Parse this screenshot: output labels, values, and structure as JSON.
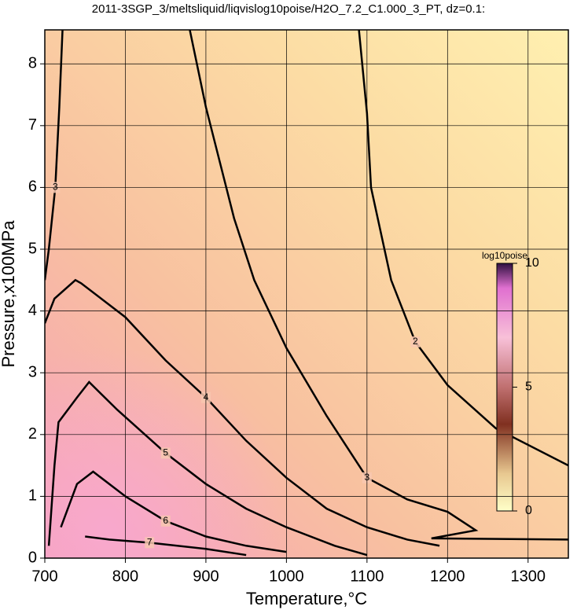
{
  "chart_data": {
    "type": "contour",
    "title": "2011-3SGP_3/meltsliquid/liqvislog10poise/H2O_7.2_C1.000_3_PT, dz=0.1:",
    "xlabel": "Temperature,°C",
    "ylabel": "Pressure,x100MPa",
    "xlim": [
      700,
      1350
    ],
    "ylim": [
      0,
      8.55
    ],
    "xticks": [
      700,
      800,
      900,
      1000,
      1100,
      1200,
      1300
    ],
    "yticks": [
      0,
      1,
      2,
      3,
      4,
      5,
      6,
      7,
      8
    ],
    "grid": true,
    "contours": [
      {
        "level": 2,
        "x": [
          1090,
          1100,
          1105,
          1130,
          1160,
          1200,
          1260,
          1350
        ],
        "y": [
          8.55,
          7.2,
          6.0,
          4.5,
          3.5,
          2.8,
          2.1,
          1.5
        ]
      },
      {
        "level": 3,
        "x": [
          880,
          900,
          935,
          960,
          1000,
          1050,
          1100,
          1150,
          1200,
          1235,
          1180,
          1350
        ],
        "y": [
          8.55,
          7.3,
          5.5,
          4.5,
          3.4,
          2.3,
          1.3,
          0.95,
          0.75,
          0.45,
          0.32,
          0.3
        ]
      },
      {
        "level": 3,
        "x": [
          722,
          718,
          713,
          705,
          700
        ],
        "y": [
          8.55,
          7.3,
          6.0,
          5.0,
          4.5
        ]
      },
      {
        "level": 4,
        "x": [
          700,
          712,
          738,
          745,
          800,
          850,
          900,
          950,
          1000,
          1050,
          1100,
          1150,
          1190
        ],
        "y": [
          3.8,
          4.2,
          4.5,
          4.45,
          3.9,
          3.2,
          2.6,
          1.9,
          1.3,
          0.8,
          0.5,
          0.3,
          0.2
        ]
      },
      {
        "level": 5,
        "x": [
          705,
          712,
          717,
          740,
          755,
          790,
          850,
          900,
          950,
          1000,
          1060,
          1100
        ],
        "y": [
          0.2,
          1.5,
          2.2,
          2.6,
          2.85,
          2.4,
          1.7,
          1.2,
          0.8,
          0.5,
          0.2,
          0.05
        ]
      },
      {
        "level": 6,
        "x": [
          720,
          740,
          760,
          800,
          850,
          900,
          950,
          1000
        ],
        "y": [
          0.5,
          1.2,
          1.4,
          1.0,
          0.6,
          0.35,
          0.2,
          0.1
        ]
      },
      {
        "level": 7,
        "x": [
          750,
          780,
          830,
          900,
          950
        ],
        "y": [
          0.35,
          0.3,
          0.25,
          0.15,
          0.05
        ]
      }
    ],
    "colorbar": {
      "label": "log10poise",
      "lim": [
        0,
        10
      ],
      "ticks": [
        0,
        5,
        10
      ]
    }
  }
}
